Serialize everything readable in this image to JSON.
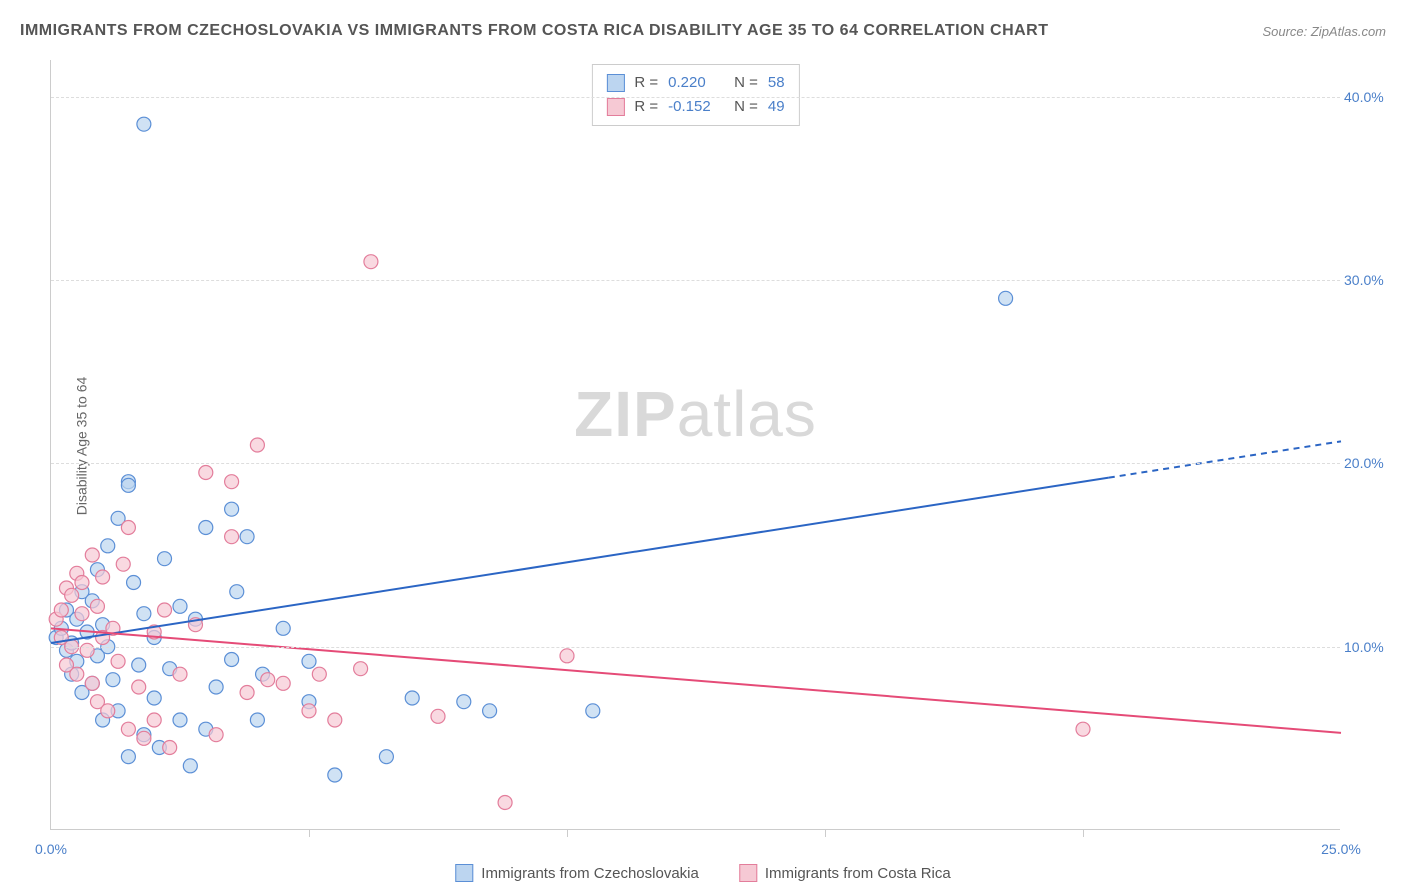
{
  "title": "IMMIGRANTS FROM CZECHOSLOVAKIA VS IMMIGRANTS FROM COSTA RICA DISABILITY AGE 35 TO 64 CORRELATION CHART",
  "source": "Source: ZipAtlas.com",
  "y_axis_label": "Disability Age 35 to 64",
  "watermark": {
    "part1": "ZIP",
    "part2": "atlas"
  },
  "chart": {
    "type": "scatter",
    "xlim": [
      0,
      25
    ],
    "ylim": [
      0,
      42
    ],
    "y_ticks": [
      10,
      20,
      30,
      40
    ],
    "y_tick_labels": [
      "10.0%",
      "20.0%",
      "30.0%",
      "40.0%"
    ],
    "x_ticks": [
      0,
      5,
      10,
      15,
      20,
      25
    ],
    "x_tick_labels": [
      "0.0%",
      "",
      "",
      "",
      "",
      "25.0%"
    ],
    "grid_color": "#dddddd",
    "border_color": "#cccccc",
    "background_color": "#ffffff",
    "tick_label_color": "#4a7fc9",
    "point_radius": 7,
    "point_stroke_width": 1.2,
    "line_width": 2
  },
  "series": [
    {
      "name": "Immigrants from Czechoslovakia",
      "short": "czech",
      "fill_color": "#bcd5f0",
      "stroke_color": "#5b8fd6",
      "line_color": "#2b65c4",
      "R": "0.220",
      "N": "58",
      "regression": {
        "x1": 0,
        "y1": 10.2,
        "x2": 25,
        "y2": 21.2,
        "solid_until_x": 20.5
      },
      "points": [
        [
          0.1,
          10.5
        ],
        [
          0.2,
          11.0
        ],
        [
          0.3,
          9.8
        ],
        [
          0.3,
          12.0
        ],
        [
          0.4,
          8.5
        ],
        [
          0.4,
          10.2
        ],
        [
          0.5,
          11.5
        ],
        [
          0.5,
          9.2
        ],
        [
          0.6,
          13.0
        ],
        [
          0.6,
          7.5
        ],
        [
          0.7,
          10.8
        ],
        [
          0.8,
          12.5
        ],
        [
          0.8,
          8.0
        ],
        [
          0.9,
          14.2
        ],
        [
          0.9,
          9.5
        ],
        [
          1.0,
          11.2
        ],
        [
          1.0,
          6.0
        ],
        [
          1.1,
          15.5
        ],
        [
          1.1,
          10.0
        ],
        [
          1.2,
          8.2
        ],
        [
          1.3,
          17.0
        ],
        [
          1.3,
          6.5
        ],
        [
          1.5,
          19.0
        ],
        [
          1.5,
          4.0
        ],
        [
          1.5,
          18.8
        ],
        [
          1.6,
          13.5
        ],
        [
          1.7,
          9.0
        ],
        [
          1.8,
          5.2
        ],
        [
          1.8,
          11.8
        ],
        [
          2.0,
          10.5
        ],
        [
          2.0,
          7.2
        ],
        [
          2.1,
          4.5
        ],
        [
          2.2,
          14.8
        ],
        [
          2.3,
          8.8
        ],
        [
          2.5,
          6.0
        ],
        [
          2.5,
          12.2
        ],
        [
          2.7,
          3.5
        ],
        [
          2.8,
          11.5
        ],
        [
          3.0,
          16.5
        ],
        [
          3.0,
          5.5
        ],
        [
          3.2,
          7.8
        ],
        [
          3.5,
          9.3
        ],
        [
          3.5,
          17.5
        ],
        [
          3.6,
          13.0
        ],
        [
          3.8,
          16.0
        ],
        [
          4.0,
          6.0
        ],
        [
          4.1,
          8.5
        ],
        [
          4.5,
          11.0
        ],
        [
          5.0,
          7.0
        ],
        [
          5.0,
          9.2
        ],
        [
          5.5,
          3.0
        ],
        [
          6.5,
          4.0
        ],
        [
          7.0,
          7.2
        ],
        [
          8.0,
          7.0
        ],
        [
          8.5,
          6.5
        ],
        [
          10.5,
          6.5
        ],
        [
          1.8,
          38.5
        ],
        [
          18.5,
          29.0
        ]
      ]
    },
    {
      "name": "Immigrants from Costa Rica",
      "short": "costarica",
      "fill_color": "#f6c9d4",
      "stroke_color": "#e37d9b",
      "line_color": "#e54b77",
      "R": "-0.152",
      "N": "49",
      "regression": {
        "x1": 0,
        "y1": 11.0,
        "x2": 25,
        "y2": 5.3,
        "solid_until_x": 25
      },
      "points": [
        [
          0.1,
          11.5
        ],
        [
          0.2,
          12.0
        ],
        [
          0.2,
          10.5
        ],
        [
          0.3,
          13.2
        ],
        [
          0.3,
          9.0
        ],
        [
          0.4,
          12.8
        ],
        [
          0.4,
          10.0
        ],
        [
          0.5,
          14.0
        ],
        [
          0.5,
          8.5
        ],
        [
          0.6,
          11.8
        ],
        [
          0.6,
          13.5
        ],
        [
          0.7,
          9.8
        ],
        [
          0.8,
          15.0
        ],
        [
          0.8,
          8.0
        ],
        [
          0.9,
          12.2
        ],
        [
          0.9,
          7.0
        ],
        [
          1.0,
          10.5
        ],
        [
          1.0,
          13.8
        ],
        [
          1.1,
          6.5
        ],
        [
          1.2,
          11.0
        ],
        [
          1.3,
          9.2
        ],
        [
          1.4,
          14.5
        ],
        [
          1.5,
          5.5
        ],
        [
          1.5,
          16.5
        ],
        [
          1.7,
          7.8
        ],
        [
          1.8,
          5.0
        ],
        [
          2.0,
          10.8
        ],
        [
          2.0,
          6.0
        ],
        [
          2.2,
          12.0
        ],
        [
          2.3,
          4.5
        ],
        [
          2.5,
          8.5
        ],
        [
          2.8,
          11.2
        ],
        [
          3.0,
          19.5
        ],
        [
          3.2,
          5.2
        ],
        [
          3.5,
          16.0
        ],
        [
          3.5,
          19.0
        ],
        [
          3.8,
          7.5
        ],
        [
          4.0,
          21.0
        ],
        [
          4.2,
          8.2
        ],
        [
          4.5,
          8.0
        ],
        [
          5.0,
          6.5
        ],
        [
          5.2,
          8.5
        ],
        [
          5.5,
          6.0
        ],
        [
          6.0,
          8.8
        ],
        [
          7.5,
          6.2
        ],
        [
          8.8,
          1.5
        ],
        [
          10.0,
          9.5
        ],
        [
          20.0,
          5.5
        ],
        [
          6.2,
          31.0
        ]
      ]
    }
  ],
  "legend_top": {
    "rows": [
      {
        "swatch_fill": "#bcd5f0",
        "swatch_stroke": "#5b8fd6",
        "R_label": "R =",
        "R_val": "0.220",
        "N_label": "N =",
        "N_val": "58"
      },
      {
        "swatch_fill": "#f6c9d4",
        "swatch_stroke": "#e37d9b",
        "R_label": "R =",
        "R_val": "-0.152",
        "N_label": "N =",
        "N_val": "49"
      }
    ]
  },
  "legend_bottom": [
    {
      "swatch_fill": "#bcd5f0",
      "swatch_stroke": "#5b8fd6",
      "label": "Immigrants from Czechoslovakia"
    },
    {
      "swatch_fill": "#f6c9d4",
      "swatch_stroke": "#e37d9b",
      "label": "Immigrants from Costa Rica"
    }
  ]
}
